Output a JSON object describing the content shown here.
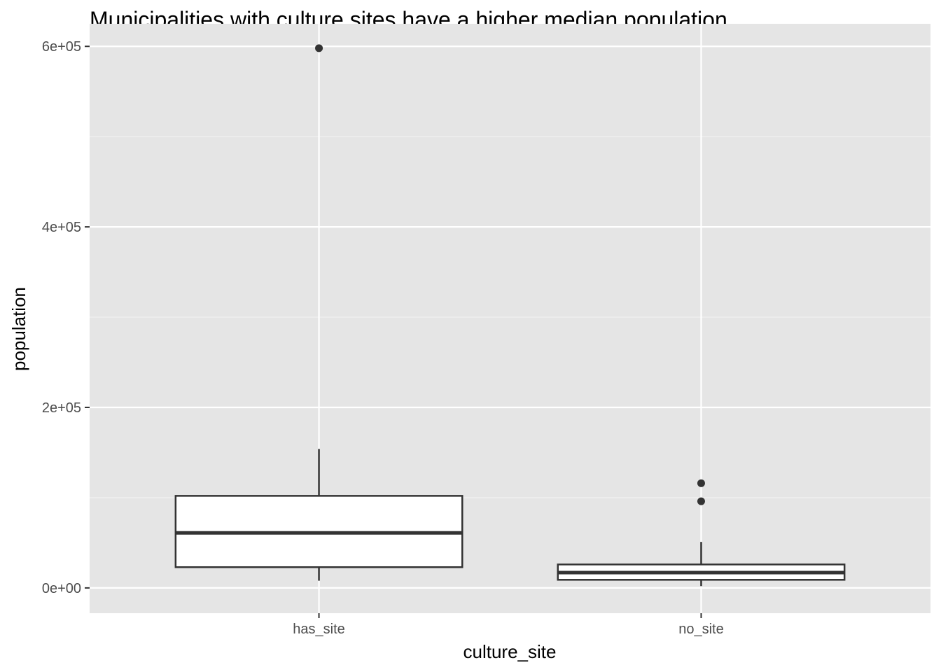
{
  "chart_data": {
    "type": "boxplot",
    "title": "Municipalities with culture sites have a higher median population",
    "xlabel": "culture_site",
    "ylabel": "population",
    "categories": [
      "has_site",
      "no_site"
    ],
    "ylim": [
      -28000,
      625000
    ],
    "yticks": [
      0,
      200000,
      400000,
      600000
    ],
    "ytick_labels": [
      "0e+00",
      "2e+05",
      "4e+05",
      "6e+05"
    ],
    "boxes": [
      {
        "category": "has_site",
        "whisker_low": 8000,
        "q1": 23000,
        "median": 61000,
        "q3": 102000,
        "whisker_high": 154000,
        "outliers": [
          598000
        ]
      },
      {
        "category": "no_site",
        "whisker_low": 2000,
        "q1": 9000,
        "median": 17000,
        "q3": 26000,
        "whisker_high": 51000,
        "outliers": [
          96000,
          116000
        ]
      }
    ],
    "grid": true,
    "legend": "none",
    "colors": {
      "panel_background": "#e5e5e5",
      "grid_major": "#ffffff",
      "grid_minor": "#f2f2f2",
      "box_fill": "#ffffff",
      "box_stroke": "#333333",
      "outlier": "#333333",
      "tick_text": "#4d4d4d",
      "title_text": "#000000"
    }
  }
}
